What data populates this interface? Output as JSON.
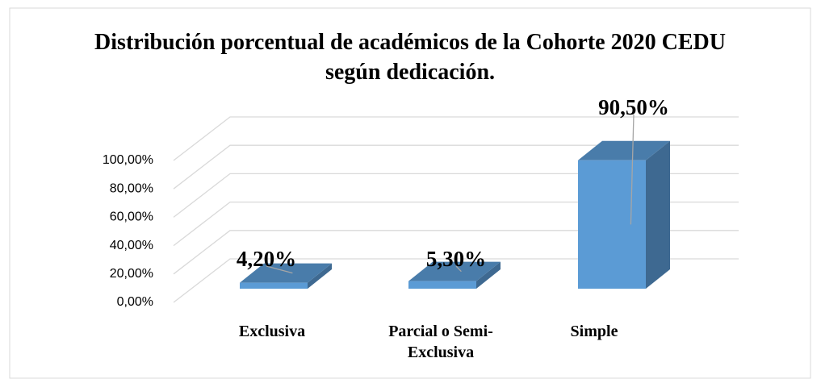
{
  "chart_data": {
    "type": "bar3d",
    "title": "Distribución porcentual de académicos de la Cohorte 2020 CEDU según dedicación.",
    "categories": [
      "Exclusiva",
      "Parcial o Semi-Exclusiva",
      "Simple"
    ],
    "values": [
      4.2,
      5.3,
      90.5
    ],
    "value_labels": [
      "4,20%",
      "5,30%",
      "90,50%"
    ],
    "color": "#5b9bd5",
    "ylim": [
      0,
      100
    ],
    "yticks": [
      {
        "value": 0,
        "label": "0,00%"
      },
      {
        "value": 20,
        "label": "20,00%"
      },
      {
        "value": 40,
        "label": "40,00%"
      },
      {
        "value": 60,
        "label": "60,00%"
      },
      {
        "value": 80,
        "label": "80,00%"
      },
      {
        "value": 100,
        "label": "100,00%"
      }
    ],
    "grid": true
  }
}
